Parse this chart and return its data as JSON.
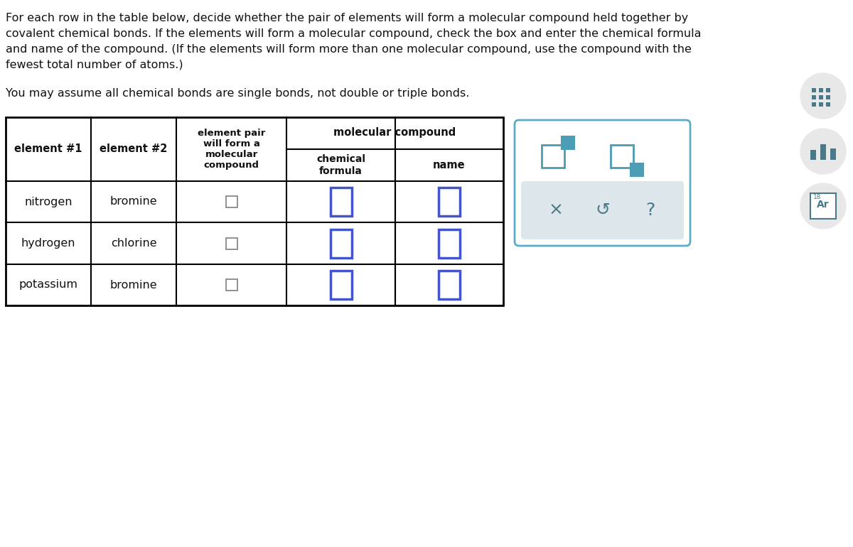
{
  "background_color": "#ffffff",
  "paragraph_text_lines": [
    "For each row in the table below, decide whether the pair of elements will form a molecular compound held together by",
    "covalent chemical bonds. If the elements will form a molecular compound, check the box and enter the chemical formula",
    "and name of the compound. (If the elements will form more than one molecular compound, use the compound with the",
    "fewest total number of atoms.)"
  ],
  "subtext": "You may assume all chemical bonds are single bonds, not double or triple bonds.",
  "rows": [
    [
      "nitrogen",
      "bromine"
    ],
    [
      "hydrogen",
      "chlorine"
    ],
    [
      "potassium",
      "bromine"
    ]
  ],
  "text_color": "#111111",
  "checkbox_border": "#888888",
  "blue_box": "#4455cc",
  "panel_border": "#5bacc8",
  "panel_bg": "#dde6ea",
  "teal": "#4a9db5",
  "sidebar_circle": "#e8e8e8",
  "sidebar_icon": "#4a7a8a"
}
